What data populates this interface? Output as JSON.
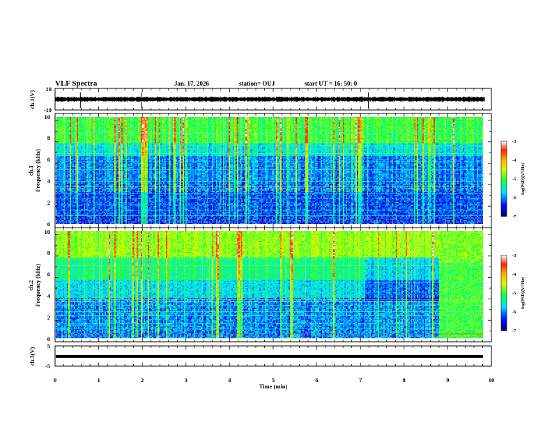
{
  "header": {
    "title": "VLF Spectra",
    "date": "Jan. 17, 2026",
    "station": "station= OUJ",
    "start": "start  UT =   16: 50: 0"
  },
  "chart_data": [
    {
      "type": "line",
      "name": "waveform-ch1",
      "ylabel": "ch.1(V)",
      "ylim": [
        -10,
        10
      ],
      "yticks": [
        "10",
        "-10"
      ],
      "xlim": [
        0,
        10
      ],
      "baseline": 0,
      "spikes_min": [
        0.58,
        1.98,
        7.18
      ]
    },
    {
      "type": "heatmap",
      "name": "spectrogram-ch1",
      "ylabel_top": "ch.1",
      "ylabel": "Frequency (kHz)",
      "ylim": [
        0,
        10
      ],
      "yticks": [
        "0",
        "2",
        "4",
        "6",
        "8",
        "10"
      ],
      "xlim": [
        0,
        9.85
      ],
      "colorbar": {
        "label": "log(PSD)(V²/Hz)",
        "range": [
          -7,
          -3
        ],
        "ticks": [
          "-3",
          "-4",
          "-5",
          "-6",
          "-7"
        ]
      }
    },
    {
      "type": "heatmap",
      "name": "spectrogram-ch2",
      "ylabel_top": "ch.2",
      "ylabel": "Frequency (kHz)",
      "ylim": [
        0,
        10
      ],
      "yticks": [
        "0",
        "2",
        "4",
        "6",
        "8",
        "10"
      ],
      "xlim": [
        0,
        9.85
      ],
      "colorbar": {
        "label": "log(PSD)(V²/Hz)",
        "range": [
          -7,
          -3
        ],
        "ticks": [
          "-3",
          "-4",
          "-5",
          "-6",
          "-7"
        ]
      }
    },
    {
      "type": "line",
      "name": "waveform-ch3",
      "ylabel": "ch.3(V)",
      "ylim": [
        -5,
        5
      ],
      "yticks": [
        "5",
        "-5"
      ],
      "xlim": [
        0,
        10
      ],
      "baseline": -1,
      "xlabel": "Time (min)",
      "xticks": [
        "0",
        "1",
        "2",
        "3",
        "4",
        "5",
        "6",
        "7",
        "8",
        "9",
        "10"
      ]
    }
  ]
}
